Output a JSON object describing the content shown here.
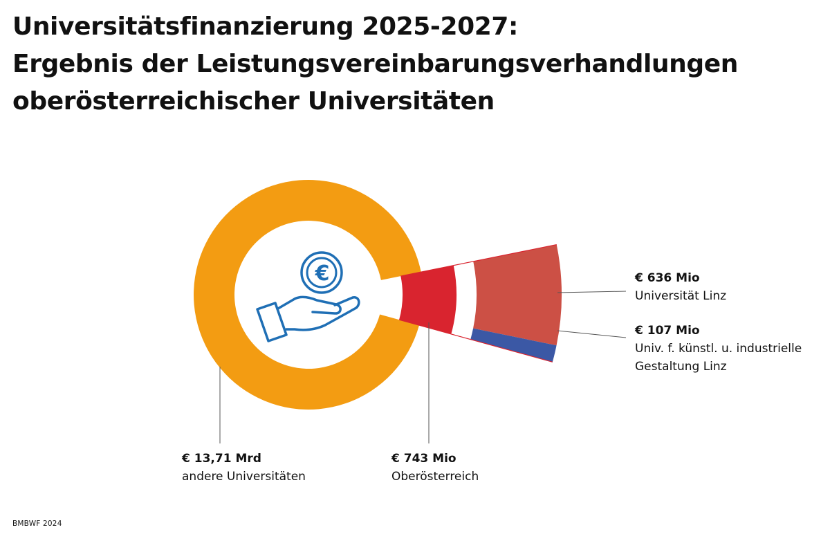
{
  "title": {
    "line1": "Universitätsfinanzierung 2025-2027:",
    "line2": "Ergebnis der Leistungsvereinbarungsverhandlungen",
    "line3": "oberösterreichischer Universitäten"
  },
  "source": "BMBWF 2024",
  "colors": {
    "orange": "#f39c12",
    "red": "#d9242f",
    "lightred": "#cc5045",
    "blue": "#3b58a5",
    "icon": "#1f6fb5"
  },
  "icons": [
    "euro-coin-icon",
    "open-hand-icon"
  ],
  "chart_data": {
    "type": "pie",
    "variant": "donut with exploded bar-of-pie breakdown",
    "slices": [
      {
        "label": "andere Universitäten",
        "value_text": "€ 13,71 Mrd",
        "value": 13710,
        "unit": "Mio €",
        "color": "#f39c12"
      },
      {
        "label": "Oberösterreich",
        "value_text": "€ 743 Mio",
        "value": 743,
        "unit": "Mio €",
        "color": "#d9242f"
      }
    ],
    "breakdown": {
      "of": "Oberösterreich",
      "items": [
        {
          "label": "Universität Linz",
          "value_text": "€ 636 Mio",
          "value": 636,
          "color": "#cc5045"
        },
        {
          "label_lines": [
            "Univ. f. künstl. u. industrielle",
            "Gestaltung Linz"
          ],
          "value_text": "€ 107 Mio",
          "value": 107,
          "color": "#3b58a5"
        }
      ]
    }
  }
}
